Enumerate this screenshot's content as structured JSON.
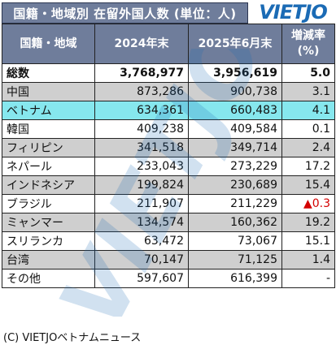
{
  "header": {
    "title": "国籍・地域別 在留外国人数 (単位：人)",
    "logo": "VIETJO",
    "brand_color": "#1b6bb5",
    "header_bg": "#6f7d9b"
  },
  "table": {
    "columns": [
      "国籍・地域",
      "2024年末",
      "2025年6月末",
      "増減率",
      "(%)"
    ],
    "rows": [
      {
        "name": "総数",
        "y2024": "3,768,977",
        "y2025": "3,956,619",
        "rate": "5.0"
      },
      {
        "name": "中国",
        "y2024": "873,286",
        "y2025": "900,738",
        "rate": "3.1"
      },
      {
        "name": "ベトナム",
        "y2024": "634,361",
        "y2025": "660,483",
        "rate": "4.1"
      },
      {
        "name": "韓国",
        "y2024": "409,238",
        "y2025": "409,584",
        "rate": "0.1"
      },
      {
        "name": "フィリピン",
        "y2024": "341,518",
        "y2025": "349,714",
        "rate": "2.4"
      },
      {
        "name": "ネパール",
        "y2024": "233,043",
        "y2025": "273,229",
        "rate": "17.2"
      },
      {
        "name": "インドネシア",
        "y2024": "199,824",
        "y2025": "230,689",
        "rate": "15.4"
      },
      {
        "name": "ブラジル",
        "y2024": "211,907",
        "y2025": "211,229",
        "rate": "▲0.3"
      },
      {
        "name": "ミャンマー",
        "y2024": "134,574",
        "y2025": "160,362",
        "rate": "19.2"
      },
      {
        "name": "スリランカ",
        "y2024": "63,472",
        "y2025": "73,067",
        "rate": "15.1"
      },
      {
        "name": "台湾",
        "y2024": "70,147",
        "y2025": "71,125",
        "rate": "1.4"
      },
      {
        "name": "その他",
        "y2024": "597,607",
        "y2025": "616,399",
        "rate": "-"
      }
    ],
    "highlight_color": "#86e7ee",
    "stripe_color": "#cfcfcf",
    "negative_color": "#d40000"
  },
  "watermark": {
    "text": "VIETJO",
    "color": "#1b6bb5"
  },
  "footer": {
    "credit": "(C) VIETJOベトナムニュース"
  }
}
